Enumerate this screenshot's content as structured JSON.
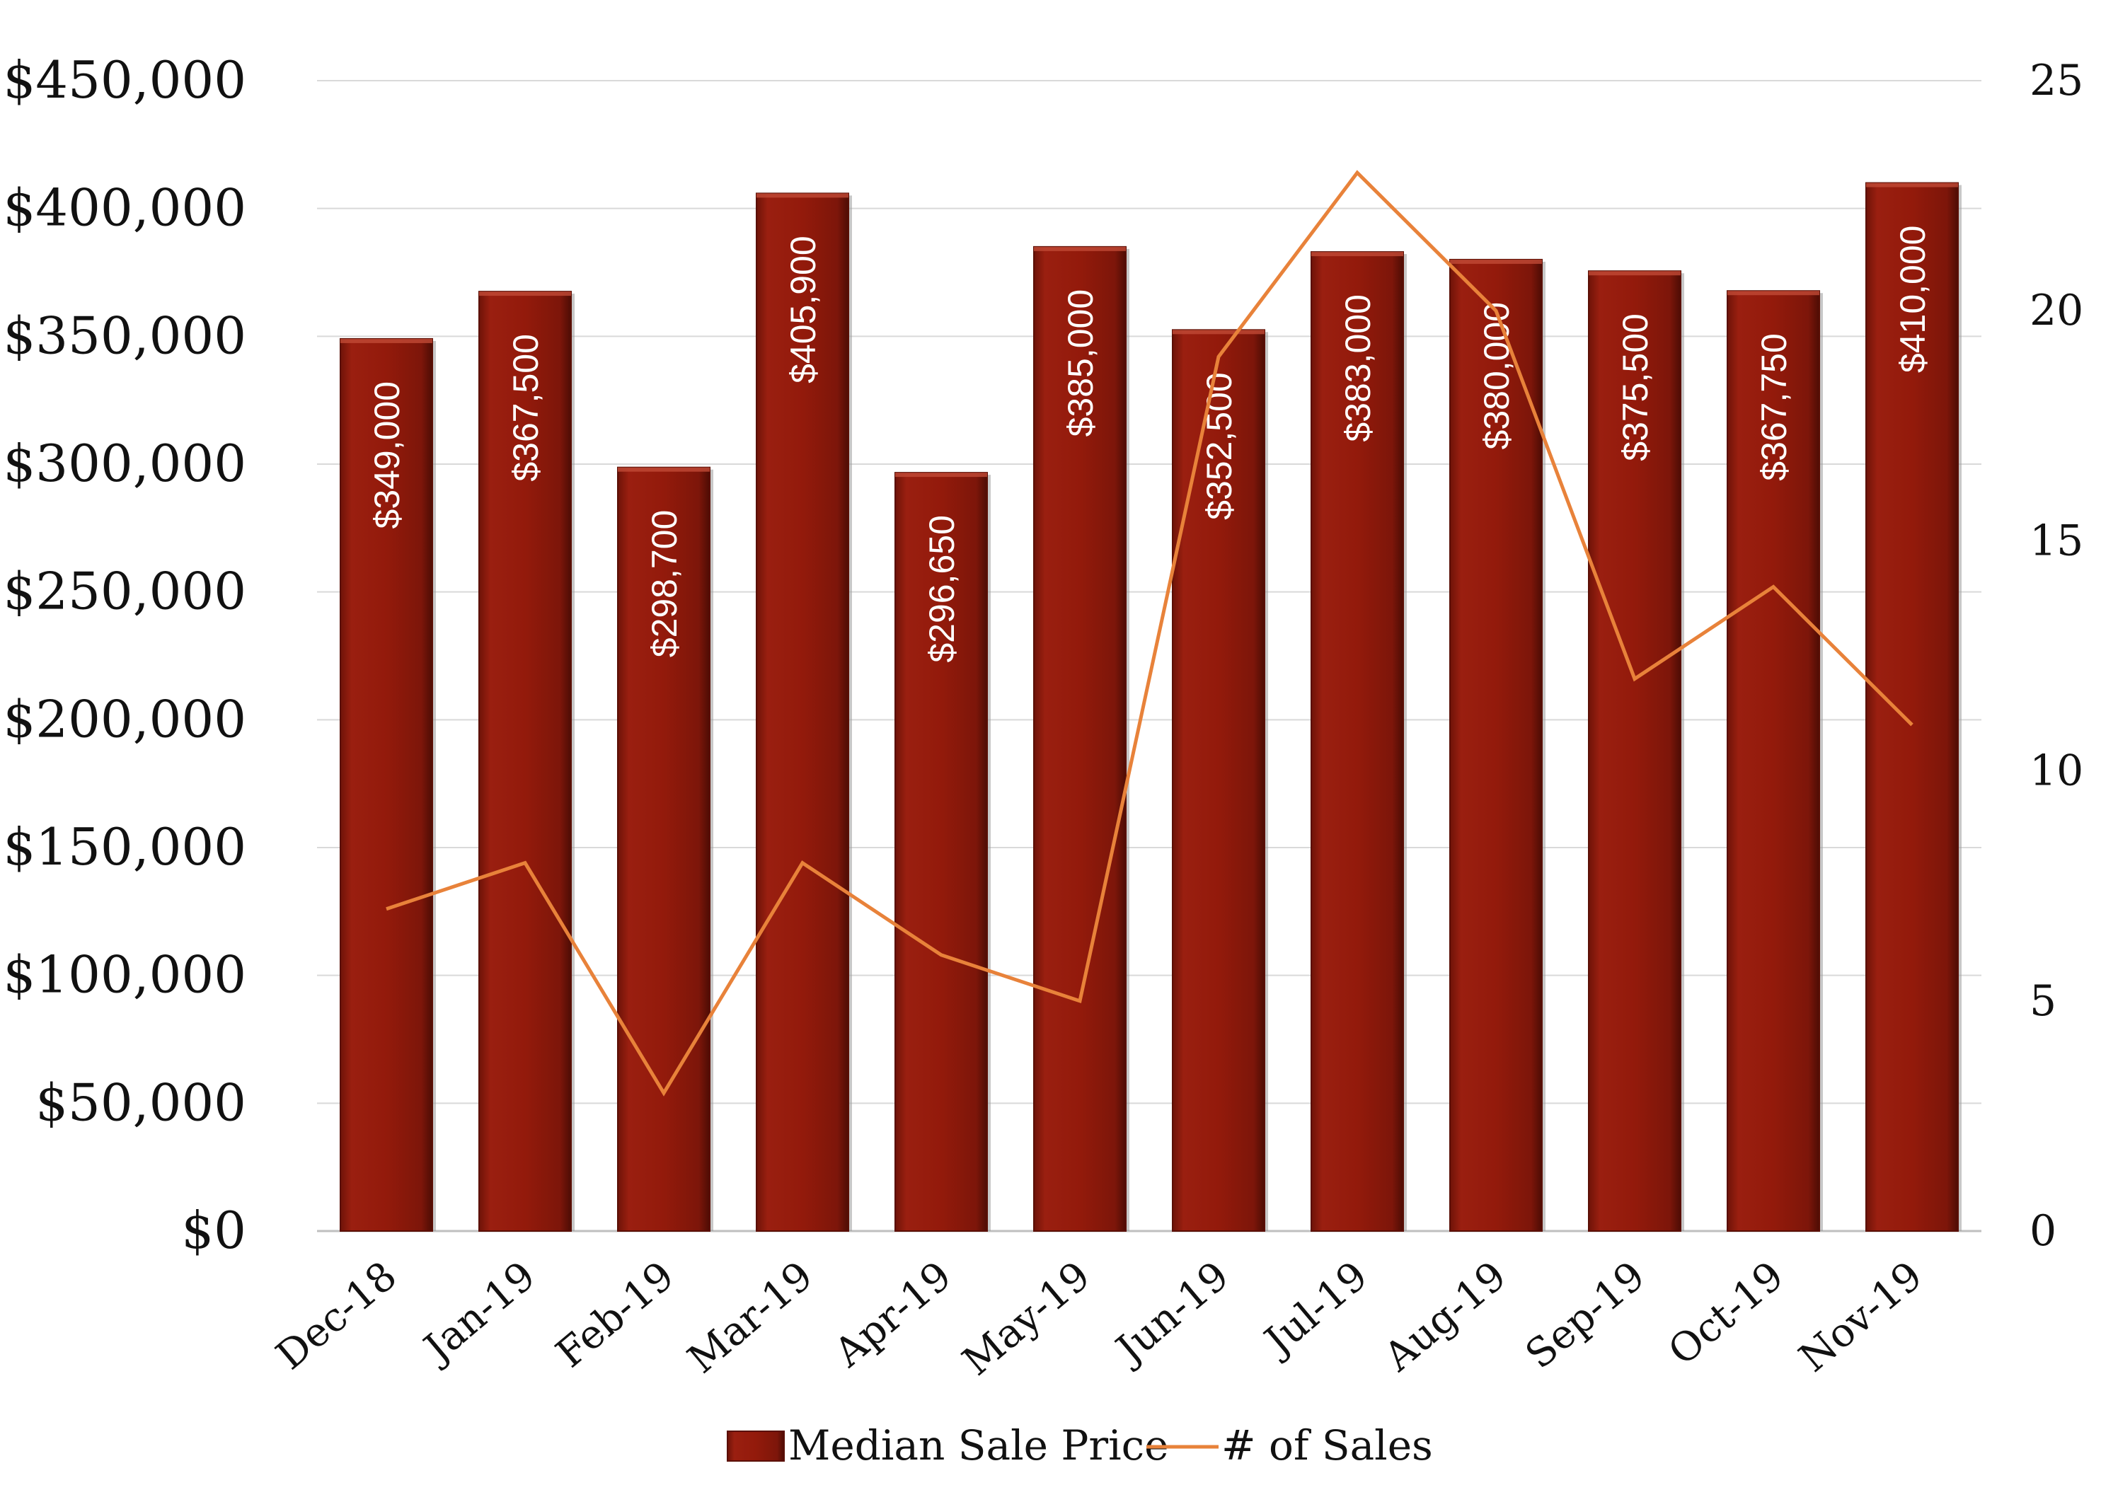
{
  "chart_data": {
    "type": "bar",
    "categories": [
      "Dec-18",
      "Jan-19",
      "Feb-19",
      "Mar-19",
      "Apr-19",
      "May-19",
      "Jun-19",
      "Jul-19",
      "Aug-19",
      "Sep-19",
      "Oct-19",
      "Nov-19"
    ],
    "series": [
      {
        "name": "Median Sale Price",
        "type": "bar",
        "axis": "left",
        "values": [
          349000,
          367500,
          298700,
          405900,
          296650,
          385000,
          352500,
          383000,
          380000,
          375500,
          367750,
          410000
        ],
        "labels": [
          "$349,000",
          "$367,500",
          "$298,700",
          "$405,900",
          "$296,650",
          "$385,000",
          "$352,500",
          "$383,000",
          "$380,000",
          "$375,500",
          "$367,750",
          "$410,000"
        ],
        "color": "#8B1A0E"
      },
      {
        "name": "# of Sales",
        "type": "line",
        "axis": "right",
        "values": [
          7,
          8,
          3,
          8,
          6,
          5,
          19,
          23,
          20,
          12,
          14,
          11
        ],
        "color": "#E8823A"
      }
    ],
    "y_left": {
      "ylim": [
        0,
        450000
      ],
      "ticks": [
        0,
        50000,
        100000,
        150000,
        200000,
        250000,
        300000,
        350000,
        400000,
        450000
      ],
      "tick_labels": [
        "$0",
        "$50,000",
        "$100,000",
        "$150,000",
        "$200,000",
        "$250,000",
        "$300,000",
        "$350,000",
        "$400,000",
        "$450,000"
      ]
    },
    "y_right": {
      "ylim": [
        0,
        25
      ],
      "ticks": [
        0,
        5,
        10,
        15,
        20,
        25
      ],
      "tick_labels": [
        "0",
        "5",
        "10",
        "15",
        "20",
        "25"
      ]
    },
    "grid": true,
    "legend": {
      "position": "bottom",
      "entries": [
        "Median Sale Price",
        "# of Sales"
      ]
    }
  }
}
